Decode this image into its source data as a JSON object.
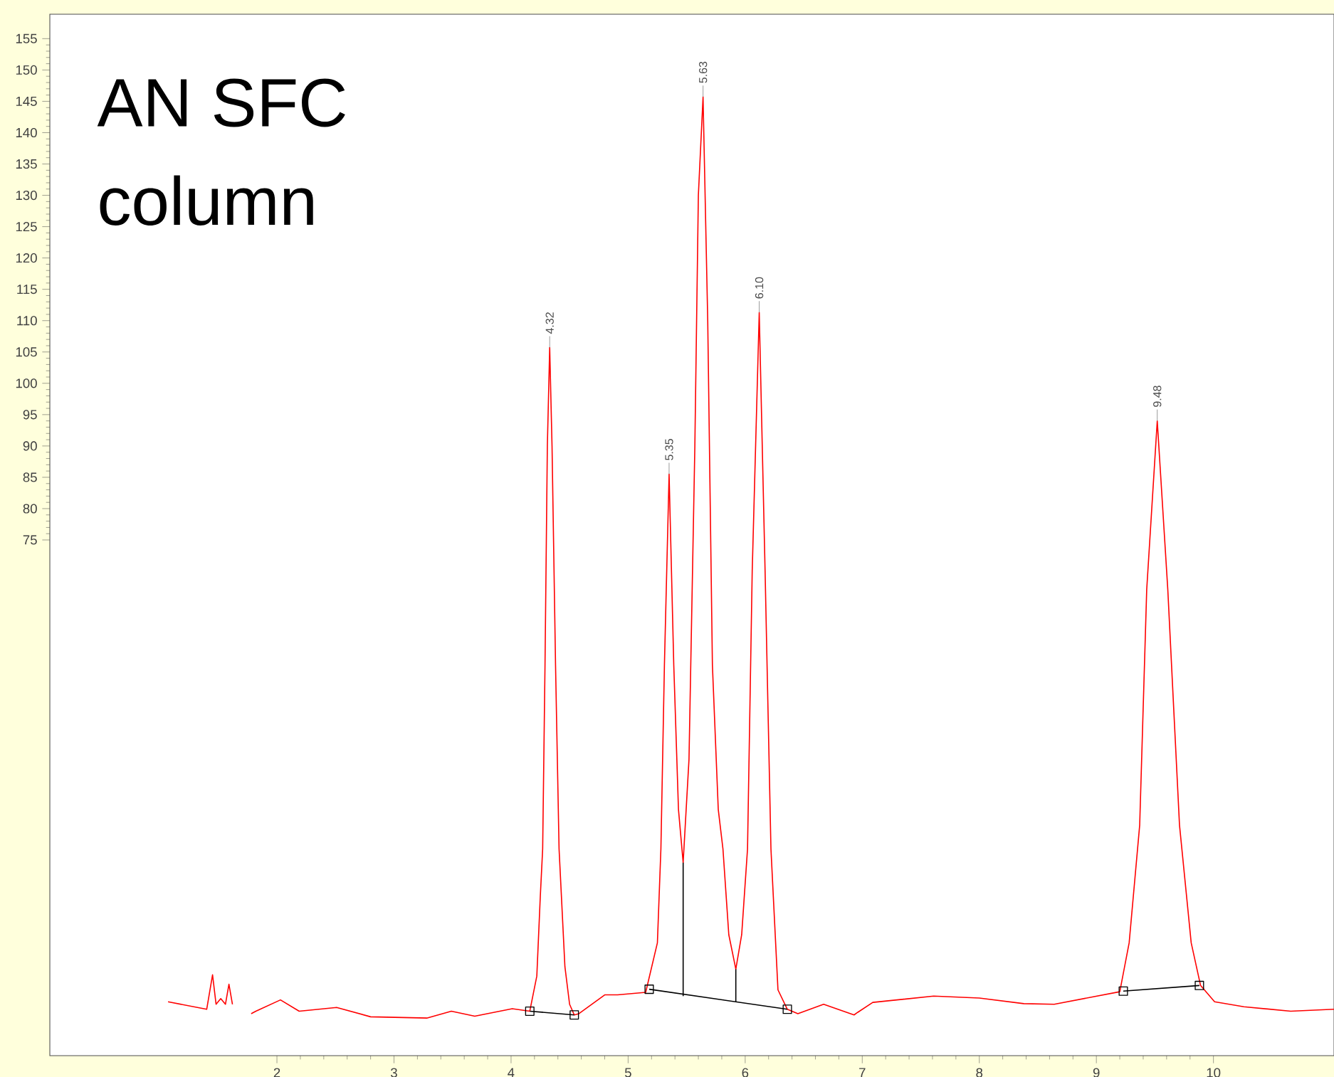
{
  "chart_data": {
    "type": "line",
    "xlim": [
      0.06,
      11.03
    ],
    "ylim": [
      -7.3,
      158.9
    ],
    "xticks": [
      2,
      3,
      4,
      5,
      6,
      7,
      8,
      9,
      10
    ],
    "yticks": [
      75,
      80,
      85,
      90,
      95,
      100,
      105,
      110,
      115,
      120,
      125,
      130,
      135,
      140,
      145,
      150,
      155
    ],
    "marker": "none",
    "line_style": "solid",
    "series": [
      {
        "color": "#ff0000",
        "x": [
          1.07,
          1.4,
          1.45,
          1.48,
          1.52,
          1.56,
          1.59,
          1.62,
          1.65,
          1.75,
          1.78,
          1.82,
          2.03,
          2.19,
          2.51,
          2.8,
          3.28,
          3.49,
          3.69,
          4.01,
          4.16,
          4.22,
          4.25,
          4.27,
          4.29,
          4.31,
          4.33,
          4.35,
          4.38,
          4.41,
          4.43,
          4.46,
          4.5,
          4.54,
          4.58,
          4.8,
          4.91,
          5.15,
          5.25,
          5.28,
          5.31,
          5.35,
          5.39,
          5.43,
          5.47,
          5.52,
          5.57,
          5.6,
          5.64,
          5.68,
          5.72,
          5.77,
          5.81,
          5.86,
          5.92,
          5.97,
          6.02,
          6.06,
          6.12,
          6.17,
          6.22,
          6.28,
          6.36,
          6.45,
          6.67,
          6.93,
          6.96,
          7.09,
          7.61,
          8.0,
          8.38,
          8.64,
          9.2,
          9.28,
          9.37,
          9.43,
          9.52,
          9.61,
          9.71,
          9.81,
          9.89,
          10.01,
          10.26,
          10.66,
          11.03
        ],
        "values": [
          1.3,
          0.1,
          5.6,
          0.9,
          1.8,
          0.9,
          4.1,
          0.9,
          null,
          null,
          -0.6,
          -0.2,
          1.6,
          -0.2,
          0.4,
          -1.1,
          -1.3,
          -0.2,
          -1.0,
          0.2,
          -0.2,
          5.4,
          18.2,
          25.7,
          55,
          90,
          105.7,
          90,
          55,
          25.7,
          18.2,
          6.9,
          0.9,
          -0.8,
          -0.6,
          2.4,
          2.4,
          2.8,
          10.7,
          25.7,
          55,
          85.5,
          55,
          32,
          23.5,
          40,
          90,
          130,
          145.7,
          110,
          55,
          32,
          25.7,
          12,
          6.5,
          12,
          25.7,
          70,
          111.3,
          70,
          25.7,
          3.2,
          0.1,
          -0.6,
          0.9,
          -0.8,
          -0.4,
          1.2,
          2.2,
          1.9,
          1.0,
          0.9,
          2.9,
          10.7,
          29.5,
          67.1,
          94,
          67.1,
          29.5,
          10.7,
          3.9,
          1.3,
          0.5,
          -0.2,
          0.1
        ]
      },
      {
        "color": "#000000",
        "marker": "square",
        "x": [
          4.16,
          4.54
        ],
        "values": [
          -0.2,
          -0.8
        ]
      },
      {
        "color": "#000000",
        "marker": "square",
        "x": [
          5.18,
          6.36
        ],
        "values": [
          3.3,
          0.1
        ]
      },
      {
        "color": "#000000",
        "marker": "square",
        "x": [
          9.23,
          9.88
        ],
        "values": [
          3.0,
          3.9
        ]
      },
      {
        "color": "#000000",
        "x": [
          5.47,
          5.47
        ],
        "values": [
          2.2,
          23.5
        ]
      },
      {
        "color": "#000000",
        "x": [
          5.92,
          5.92
        ],
        "values": [
          1.3,
          6.5
        ]
      }
    ],
    "annotations": [
      "AN SFC",
      "column",
      {
        "text": "4.32",
        "x": 4.33,
        "y": 105.7
      },
      {
        "text": "5.35",
        "x": 5.35,
        "y": 85.5
      },
      {
        "text": "5.63",
        "x": 5.64,
        "y": 145.7
      },
      {
        "text": "6.10",
        "x": 6.12,
        "y": 111.3
      },
      {
        "text": "9.48",
        "x": 9.52,
        "y": 94
      }
    ]
  }
}
